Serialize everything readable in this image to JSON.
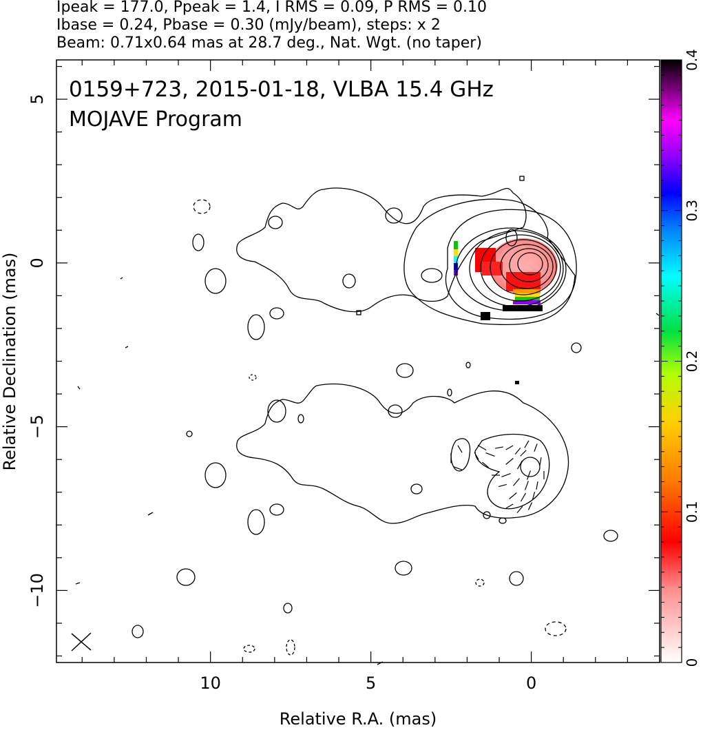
{
  "header": {
    "line1": "Ipeak = 177.0, Ppeak = 1.4, I RMS = 0.09, P RMS = 0.10",
    "line2": "Ibase = 0.24, Pbase = 0.30 (mJy/beam), steps: x 2",
    "line3": "Beam: 0.71x0.64 mas at 28.7 deg., Nat. Wgt. (no taper)"
  },
  "chart_data": {
    "type": "contour",
    "title": "0159+723, 2015-01-18, VLBA 15.4 GHz",
    "subtitle": "MOJAVE Program",
    "xlabel": "Relative R.A. (mas)",
    "ylabel": "Relative Declination (mas)",
    "xlim": [
      14.8,
      -4
    ],
    "ylim": [
      -12.2,
      6.2
    ],
    "x_ticks": [
      10,
      5,
      0
    ],
    "y_ticks": [
      5,
      0,
      -5,
      -10
    ],
    "colorbar": {
      "range": [
        0,
        0.4
      ],
      "ticks": [
        0,
        0.1,
        0.2,
        0.3,
        0.4
      ],
      "tick_labels": [
        "0",
        "0.1",
        "0.2",
        "0.3",
        "0.4"
      ]
    },
    "panels": [
      {
        "name": "Total intensity contours with fractional polarization color",
        "core": [
          0,
          0
        ]
      },
      {
        "name": "Polarized intensity contours with EVPA vectors",
        "core": [
          0,
          -6
        ]
      }
    ],
    "beam": {
      "major_mas": 0.71,
      "minor_mas": 0.64,
      "pa_deg": 28.7
    }
  }
}
